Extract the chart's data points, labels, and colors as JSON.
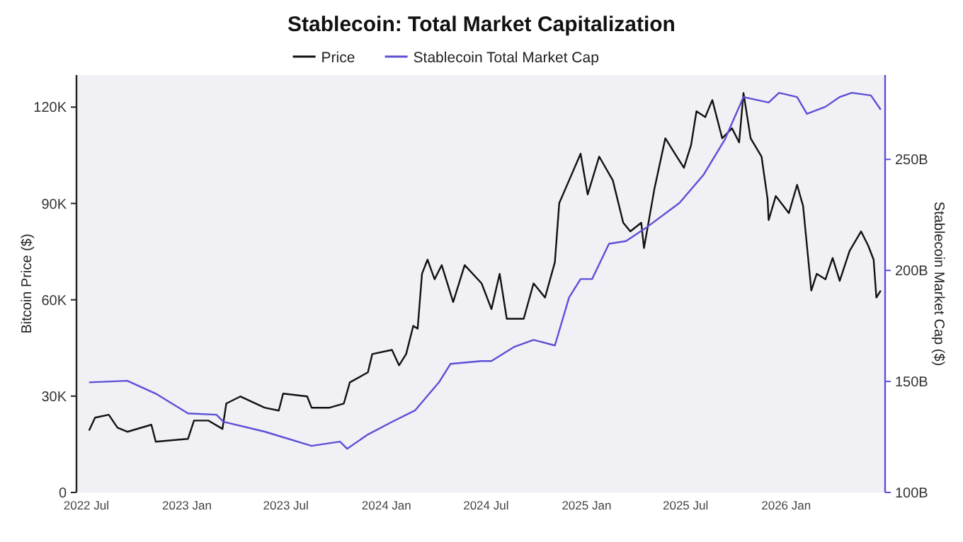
{
  "chart_data": {
    "type": "line",
    "title": "Stablecoin: Total Market Capitalization",
    "ylabel": "Bitcoin Price ($)",
    "y2label": "Stablecoin Market Cap ($)",
    "xlim": [
      "2022-06-13",
      "2026-07-01"
    ],
    "xticks": [
      {
        "value": "2022-07-01",
        "label": "2022 Jul"
      },
      {
        "value": "2023-01-01",
        "label": "2023 Jan"
      },
      {
        "value": "2023-07-01",
        "label": "2023 Jul"
      },
      {
        "value": "2024-01-01",
        "label": "2024 Jan"
      },
      {
        "value": "2024-07-01",
        "label": "2024 Jul"
      },
      {
        "value": "2025-01-01",
        "label": "2025 Jan"
      },
      {
        "value": "2025-07-01",
        "label": "2025 Jul"
      },
      {
        "value": "2026-01-01",
        "label": "2026 Jan"
      }
    ],
    "ylim": [
      0,
      130000
    ],
    "yticks": [
      0,
      {
        "value": 30000,
        "label": "30K"
      },
      {
        "value": 60000,
        "label": "60K"
      },
      {
        "value": 90000,
        "label": "90K"
      },
      {
        "value": 120000,
        "label": "120K"
      }
    ],
    "y2lim": [
      100,
      288
    ],
    "y2ticks": [
      {
        "value": 100,
        "label": "100B"
      },
      {
        "value": 150,
        "label": "150B"
      },
      {
        "value": 200,
        "label": "200B"
      },
      {
        "value": 250,
        "label": "250B"
      }
    ],
    "legend": "top",
    "grid": false,
    "marker": "none",
    "line_style": "solid",
    "series": [
      {
        "name": "Price",
        "color": "#111111",
        "x": [
          "2022-07-06",
          "2022-07-17",
          "2022-08-11",
          "2022-08-27",
          "2022-09-14",
          "2022-10-28",
          "2022-11-05",
          "2023-01-03",
          "2023-01-14",
          "2023-02-09",
          "2023-03-07",
          "2023-03-14",
          "2023-04-09",
          "2023-05-23",
          "2023-06-18",
          "2023-06-26",
          "2023-08-09",
          "2023-08-17",
          "2023-09-19",
          "2023-10-15",
          "2023-10-26",
          "2023-11-28",
          "2023-12-06",
          "2024-01-11",
          "2024-01-24",
          "2024-02-06",
          "2024-02-19",
          "2024-02-27",
          "2024-03-06",
          "2024-03-16",
          "2024-03-29",
          "2024-04-11",
          "2024-05-02",
          "2024-05-23",
          "2024-06-23",
          "2024-07-11",
          "2024-07-26",
          "2024-08-08",
          "2024-09-08",
          "2024-09-26",
          "2024-10-17",
          "2024-11-04",
          "2024-11-12",
          "2024-11-30",
          "2024-12-21",
          "2025-01-03",
          "2025-01-24",
          "2025-02-18",
          "2025-03-09",
          "2025-03-22",
          "2025-04-11",
          "2025-04-16",
          "2025-05-05",
          "2025-05-25",
          "2025-06-15",
          "2025-06-28",
          "2025-07-11",
          "2025-07-21",
          "2025-08-06",
          "2025-08-19",
          "2025-09-06",
          "2025-09-24",
          "2025-10-07",
          "2025-10-15",
          "2025-10-28",
          "2025-11-17",
          "2025-11-28",
          "2025-11-30",
          "2025-12-13",
          "2026-01-06",
          "2026-01-21",
          "2026-02-01",
          "2026-02-08",
          "2026-02-16",
          "2026-02-26",
          "2026-03-14",
          "2026-03-27",
          "2026-04-09",
          "2026-04-27",
          "2026-05-18",
          "2026-05-31",
          "2026-06-10",
          "2026-06-15",
          "2026-06-23"
        ],
        "values": [
          19300,
          23300,
          24200,
          20200,
          18900,
          21100,
          15800,
          16700,
          22400,
          22400,
          19800,
          27700,
          29900,
          26400,
          25500,
          30800,
          29900,
          26400,
          26400,
          27700,
          34300,
          37400,
          43100,
          44400,
          39600,
          43100,
          51900,
          51000,
          68100,
          72500,
          66400,
          70800,
          59300,
          70800,
          65100,
          57100,
          68100,
          54100,
          54100,
          65100,
          60700,
          71700,
          90100,
          97200,
          105500,
          92800,
          104600,
          97200,
          84000,
          81300,
          84000,
          76100,
          94500,
          110300,
          104600,
          101100,
          108100,
          118700,
          116900,
          122200,
          110300,
          113400,
          109000,
          124400,
          110300,
          104600,
          91400,
          84800,
          92300,
          87000,
          95800,
          89200,
          76900,
          62900,
          68100,
          66400,
          73000,
          65900,
          75200,
          81300,
          76900,
          72500,
          60700,
          62900
        ]
      },
      {
        "name": "Stablecoin Total Market Cap",
        "color": "#5b4fd6",
        "axis": "y2",
        "x": [
          "2022-07-06",
          "2022-09-14",
          "2022-11-05",
          "2023-01-03",
          "2023-02-24",
          "2023-03-09",
          "2023-05-23",
          "2023-08-17",
          "2023-10-08",
          "2023-10-21",
          "2023-11-28",
          "2024-01-11",
          "2024-02-22",
          "2024-04-06",
          "2024-04-27",
          "2024-06-23",
          "2024-07-11",
          "2024-08-21",
          "2024-09-26",
          "2024-11-04",
          "2024-11-30",
          "2024-12-21",
          "2025-01-11",
          "2025-02-11",
          "2025-03-14",
          "2025-04-22",
          "2025-06-20",
          "2025-08-03",
          "2025-09-11",
          "2025-10-15",
          "2025-11-30",
          "2025-12-19",
          "2026-01-21",
          "2026-02-08",
          "2026-03-14",
          "2026-04-09",
          "2026-05-01",
          "2026-06-05",
          "2026-06-23"
        ],
        "values": [
          149.6,
          150.3,
          144.5,
          135.6,
          135,
          131.8,
          127.4,
          121,
          122.9,
          119.7,
          126.1,
          131.8,
          136.9,
          149.6,
          157.9,
          159.2,
          159.2,
          165.5,
          168.7,
          166.2,
          187.8,
          196.1,
          196.1,
          212,
          213.2,
          219.6,
          230.4,
          243.1,
          259,
          278.1,
          275.6,
          280,
          278.1,
          270.5,
          273.7,
          278.1,
          280,
          278.8,
          272.4
        ]
      }
    ]
  }
}
